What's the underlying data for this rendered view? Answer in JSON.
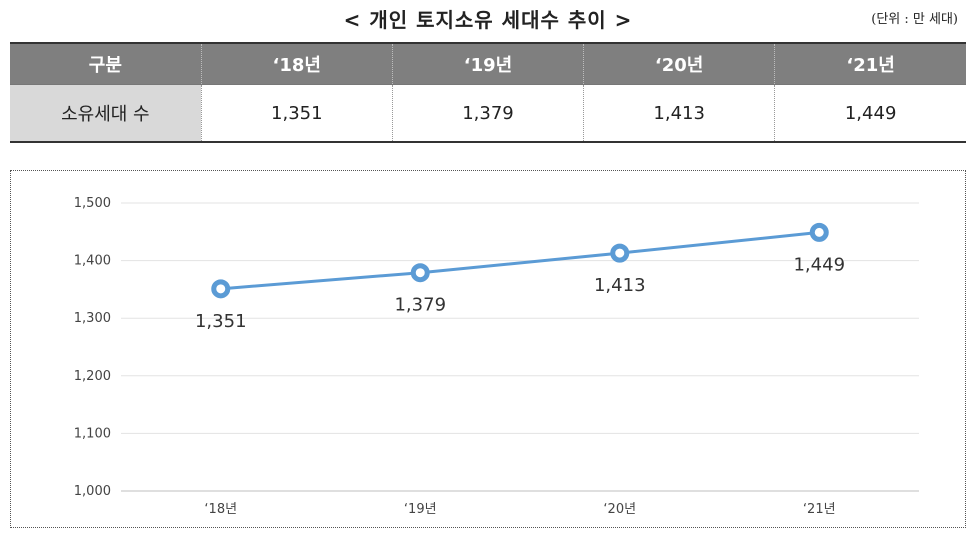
{
  "header": {
    "title": "< 개인 토지소유 세대수 추이 >",
    "unit": "(단위 : 만 세대)"
  },
  "table": {
    "headers": [
      "구분",
      "‘18년",
      "‘19년",
      "‘20년",
      "‘21년"
    ],
    "row_label": "소유세대 수",
    "row_values": [
      "1,351",
      "1,379",
      "1,413",
      "1,449"
    ]
  },
  "chart_data": {
    "type": "line",
    "title": "",
    "xlabel": "",
    "ylabel": "",
    "categories": [
      "‘18년",
      "‘19년",
      "‘20년",
      "‘21년"
    ],
    "series": [
      {
        "name": "소유세대 수",
        "values": [
          1351,
          1379,
          1413,
          1449
        ]
      }
    ],
    "data_labels": [
      "1,351",
      "1,379",
      "1,413",
      "1,449"
    ],
    "ylim": [
      1000,
      1500
    ],
    "yticks": [
      1000,
      1100,
      1200,
      1300,
      1400,
      1500
    ],
    "ytick_labels": [
      "1,000",
      "1,100",
      "1,200",
      "1,300",
      "1,400",
      "1,500"
    ],
    "grid": true,
    "line_color": "#5b9bd5"
  }
}
